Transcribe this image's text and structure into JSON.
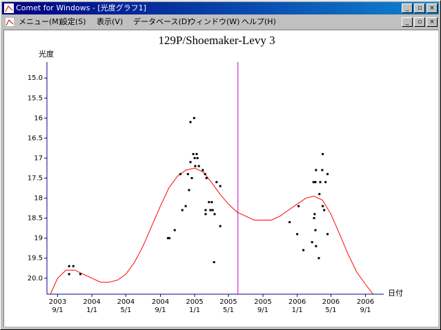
{
  "window": {
    "title": "Comet for Windows - [光度グラフ1]",
    "menu": [
      "メニュー(M)",
      "設定(S)",
      "表示(V)",
      "データベース(D)",
      "ウィンドウ(W)",
      "ヘルプ(H)"
    ]
  },
  "chart_data": {
    "type": "scatter",
    "title": "129P/Shoemaker-Levy 3",
    "y_label": "光度",
    "x_label": "日付",
    "ylim": [
      14.6,
      20.4
    ],
    "y_inverted": true,
    "yticks": [
      {
        "value": 15,
        "label": "15.0"
      },
      15.5,
      16,
      16.5,
      17,
      17.5,
      18,
      18.5,
      19,
      19.5,
      {
        "value": 20,
        "label": "20.0"
      }
    ],
    "xlim": [
      "2003-07-25",
      "2006-11-05"
    ],
    "xticks": [
      {
        "value": "2003-09-01",
        "label": [
          "2003",
          "9/1"
        ]
      },
      {
        "value": "2004-01-01",
        "label": [
          "2004",
          "1/1"
        ]
      },
      {
        "value": "2004-05-01",
        "label": [
          "2004",
          "5/1"
        ]
      },
      {
        "value": "2004-09-01",
        "label": [
          "2004",
          "9/1"
        ]
      },
      {
        "value": "2005-01-01",
        "label": [
          "2005",
          "1/1"
        ]
      },
      {
        "value": "2005-05-01",
        "label": [
          "2005",
          "5/1"
        ]
      },
      {
        "value": "2005-09-01",
        "label": [
          "2005",
          "9/1"
        ]
      },
      {
        "value": "2006-01-01",
        "label": [
          "2006",
          "1/1"
        ]
      },
      {
        "value": "2006-05-01",
        "label": [
          "2006",
          "5/1"
        ]
      },
      {
        "value": "2006-09-01",
        "label": [
          "2006",
          "9/1"
        ]
      }
    ],
    "marker_date": "2005-06-04",
    "marker_color": "#c000c0",
    "points": {
      "color": "#000000",
      "x": [
        "2003-10-12",
        "2003-10-12",
        "2003-10-27",
        "2003-11-21",
        "2004-09-28",
        "2004-10-03",
        "2004-10-22",
        "2004-11-11",
        "2004-11-18",
        "2004-11-30",
        "2004-12-08",
        "2004-12-12",
        "2004-12-17",
        "2004-12-17",
        "2004-12-22",
        "2004-12-27",
        "2004-12-30",
        "2005-01-01",
        "2005-01-03",
        "2005-01-08",
        "2005-01-11",
        "2005-01-16",
        "2005-01-30",
        "2005-02-07",
        "2005-02-09",
        "2005-02-09",
        "2005-02-12",
        "2005-02-21",
        "2005-02-26",
        "2005-03-03",
        "2005-03-06",
        "2005-03-11",
        "2005-03-13",
        "2005-03-20",
        "2005-04-02",
        "2005-04-02",
        "2005-12-05",
        "2006-01-01",
        "2006-01-06",
        "2006-01-23",
        "2006-02-23",
        "2006-02-28",
        "2006-03-02",
        "2006-03-04",
        "2006-03-07",
        "2006-03-09",
        "2006-03-07",
        "2006-03-09",
        "2006-03-19",
        "2006-03-21",
        "2006-03-24",
        "2006-03-31",
        "2006-04-02",
        "2006-04-02",
        "2006-04-07",
        "2006-04-12",
        "2006-04-19",
        "2006-04-19"
      ],
      "values": [
        19.9,
        19.7,
        19.7,
        19.9,
        19.0,
        19.0,
        18.8,
        17.4,
        18.3,
        18.2,
        17.4,
        17.8,
        16.1,
        17.1,
        17.5,
        16.9,
        16.0,
        17.0,
        17.2,
        16.9,
        17.0,
        17.2,
        17.3,
        17.4,
        18.4,
        18.3,
        17.5,
        18.1,
        18.3,
        18.1,
        18.3,
        19.6,
        18.4,
        17.6,
        17.7,
        18.7,
        18.6,
        18.9,
        18.2,
        19.3,
        19.1,
        17.6,
        18.5,
        18.4,
        17.6,
        17.3,
        18.8,
        19.2,
        19.5,
        17.9,
        17.6,
        17.3,
        16.9,
        18.2,
        18.3,
        17.6,
        18.9,
        17.4
      ]
    },
    "curve": {
      "color": "#ff0000",
      "x": [
        "2003-08-06",
        "2003-09-01",
        "2003-10-01",
        "2003-11-01",
        "2003-12-01",
        "2004-01-01",
        "2004-02-01",
        "2004-03-01",
        "2004-04-01",
        "2004-05-01",
        "2004-06-01",
        "2004-07-01",
        "2004-08-01",
        "2004-09-01",
        "2004-10-01",
        "2004-11-01",
        "2004-12-01",
        "2005-01-01",
        "2005-02-01",
        "2005-03-01",
        "2005-04-01",
        "2005-05-01",
        "2005-06-01",
        "2005-07-01",
        "2005-08-01",
        "2005-09-01",
        "2005-10-01",
        "2005-11-01",
        "2005-12-01",
        "2006-01-01",
        "2006-02-01",
        "2006-03-01",
        "2006-04-01",
        "2006-05-01",
        "2006-06-01",
        "2006-07-01",
        "2006-08-01",
        "2006-09-01",
        "2006-09-28"
      ],
      "values": [
        20.4,
        20.0,
        19.8,
        19.8,
        19.9,
        20.0,
        20.1,
        20.1,
        20.05,
        19.9,
        19.6,
        19.2,
        18.7,
        18.2,
        17.75,
        17.45,
        17.3,
        17.25,
        17.35,
        17.6,
        17.9,
        18.15,
        18.35,
        18.45,
        18.55,
        18.55,
        18.55,
        18.45,
        18.3,
        18.15,
        18.0,
        17.95,
        18.05,
        18.4,
        18.9,
        19.4,
        19.85,
        20.15,
        20.4
      ]
    }
  }
}
